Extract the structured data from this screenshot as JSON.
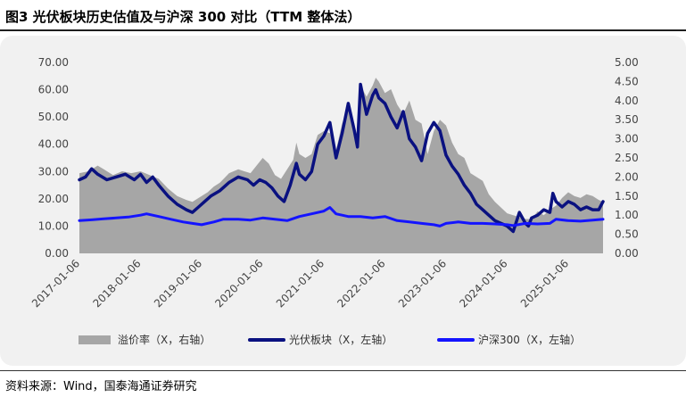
{
  "title": "图3  光伏板块历史估值及与沪深 300 对比（TTM 整体法）",
  "source": "资料来源：Wind，国泰海通证券研究",
  "colors": {
    "premium": "#a6a6a6",
    "pv": "#0a1180",
    "hs300": "#1414ff",
    "axis_text": "#444444",
    "frame": "#f1f1f1"
  },
  "chart_data": {
    "type": "line",
    "left_axis": {
      "min": 0,
      "max": 70,
      "ticks": [
        "0.00",
        "10.00",
        "20.00",
        "30.00",
        "40.00",
        "50.00",
        "60.00",
        "70.00"
      ]
    },
    "right_axis": {
      "min": 0,
      "max": 5,
      "ticks": [
        "0.00",
        "0.50",
        "1.00",
        "1.50",
        "2.00",
        "2.50",
        "3.00",
        "3.50",
        "4.00",
        "4.50",
        "5.00"
      ]
    },
    "x_ticks": [
      "2017-01-06",
      "2018-01-06",
      "2019-01-06",
      "2020-01-06",
      "2021-01-06",
      "2022-01-06",
      "2023-01-06",
      "2024-01-06",
      "2025-01-06"
    ],
    "x_range": [
      2017.0,
      2025.57
    ],
    "series": [
      {
        "name": "溢价率（X，右轴）",
        "axis": "right",
        "style": "area",
        "x": [
          2017.0,
          2017.15,
          2017.3,
          2017.4,
          2017.55,
          2017.7,
          2017.85,
          2018.0,
          2018.15,
          2018.3,
          2018.45,
          2018.6,
          2018.75,
          2018.85,
          2019.0,
          2019.1,
          2019.2,
          2019.3,
          2019.45,
          2019.6,
          2019.7,
          2019.8,
          2019.9,
          2020.0,
          2020.1,
          2020.2,
          2020.3,
          2020.4,
          2020.5,
          2020.55,
          2020.6,
          2020.7,
          2020.8,
          2020.9,
          2021.0,
          2021.1,
          2021.2,
          2021.3,
          2021.4,
          2021.5,
          2021.55,
          2021.6,
          2021.7,
          2021.8,
          2021.85,
          2021.9,
          2022.0,
          2022.1,
          2022.2,
          2022.3,
          2022.4,
          2022.5,
          2022.6,
          2022.7,
          2022.8,
          2022.9,
          2023.0,
          2023.1,
          2023.2,
          2023.3,
          2023.4,
          2023.5,
          2023.6,
          2023.7,
          2023.8,
          2023.9,
          2024.0,
          2024.1,
          2024.2,
          2024.3,
          2024.4,
          2024.5,
          2024.6,
          2024.7,
          2024.8,
          2024.9,
          2025.0,
          2025.1,
          2025.2,
          2025.3,
          2025.4,
          2025.5,
          2025.57
        ],
        "values": [
          2.1,
          2.15,
          2.3,
          2.2,
          2.05,
          2.15,
          2.1,
          2.15,
          2.05,
          1.95,
          1.7,
          1.5,
          1.4,
          1.35,
          1.5,
          1.6,
          1.75,
          1.85,
          2.1,
          2.2,
          2.15,
          2.1,
          2.3,
          2.5,
          2.35,
          2.05,
          1.95,
          2.2,
          2.45,
          2.9,
          2.6,
          2.5,
          2.6,
          3.1,
          3.2,
          3.15,
          2.7,
          3.4,
          3.8,
          3.4,
          3.0,
          4.4,
          4.1,
          4.4,
          4.6,
          4.5,
          4.2,
          4.3,
          3.9,
          3.65,
          4.0,
          3.5,
          3.4,
          2.6,
          3.2,
          3.5,
          3.35,
          2.9,
          2.6,
          2.5,
          2.1,
          2.0,
          1.9,
          1.55,
          1.35,
          1.2,
          1.05,
          1.0,
          0.95,
          0.9,
          0.9,
          1.1,
          1.0,
          1.15,
          1.25,
          1.45,
          1.6,
          1.5,
          1.45,
          1.55,
          1.5,
          1.4,
          1.35
        ]
      },
      {
        "name": "光伏板块（X，左轴）",
        "axis": "left",
        "style": "line",
        "x": [
          2017.0,
          2017.1,
          2017.2,
          2017.3,
          2017.45,
          2017.6,
          2017.75,
          2017.9,
          2018.0,
          2018.1,
          2018.2,
          2018.3,
          2018.45,
          2018.6,
          2018.75,
          2018.85,
          2018.95,
          2019.05,
          2019.15,
          2019.3,
          2019.45,
          2019.6,
          2019.75,
          2019.85,
          2019.95,
          2020.05,
          2020.15,
          2020.25,
          2020.35,
          2020.45,
          2020.55,
          2020.6,
          2020.7,
          2020.8,
          2020.9,
          2021.0,
          2021.1,
          2021.2,
          2021.3,
          2021.4,
          2021.5,
          2021.55,
          2021.6,
          2021.7,
          2021.8,
          2021.85,
          2021.9,
          2022.0,
          2022.1,
          2022.2,
          2022.3,
          2022.4,
          2022.5,
          2022.6,
          2022.7,
          2022.8,
          2022.9,
          2023.0,
          2023.1,
          2023.2,
          2023.3,
          2023.4,
          2023.5,
          2023.6,
          2023.7,
          2023.8,
          2023.9,
          2024.0,
          2024.05,
          2024.1,
          2024.2,
          2024.3,
          2024.35,
          2024.4,
          2024.5,
          2024.6,
          2024.7,
          2024.75,
          2024.8,
          2024.9,
          2025.0,
          2025.1,
          2025.2,
          2025.3,
          2025.4,
          2025.5,
          2025.57
        ],
        "values": [
          27,
          28,
          31,
          29,
          27,
          28,
          29,
          27,
          29,
          26,
          28,
          25,
          21,
          18,
          16,
          15,
          17,
          19,
          21,
          23,
          26,
          28,
          27,
          25,
          27,
          26,
          24,
          21,
          19,
          25,
          33,
          29,
          27,
          30,
          40,
          43,
          48,
          35,
          44,
          55,
          45,
          39,
          62,
          51,
          58,
          60,
          57,
          55,
          50,
          46,
          52,
          42,
          39,
          34,
          44,
          48,
          45,
          36,
          32,
          29,
          25,
          22,
          18,
          16,
          14,
          12,
          11,
          10,
          9,
          8,
          15,
          11,
          10,
          13,
          14,
          16,
          15,
          22,
          19,
          17,
          19,
          18,
          16,
          17,
          16,
          16,
          19
        ]
      },
      {
        "name": "沪深300（X，左轴）",
        "axis": "left",
        "style": "line",
        "x": [
          2017.0,
          2017.2,
          2017.4,
          2017.6,
          2017.8,
          2018.0,
          2018.1,
          2018.3,
          2018.5,
          2018.7,
          2018.85,
          2019.0,
          2019.2,
          2019.35,
          2019.6,
          2019.8,
          2020.0,
          2020.2,
          2020.4,
          2020.6,
          2020.8,
          2021.0,
          2021.1,
          2021.2,
          2021.4,
          2021.6,
          2021.8,
          2022.0,
          2022.2,
          2022.4,
          2022.6,
          2022.8,
          2022.9,
          2023.0,
          2023.2,
          2023.4,
          2023.6,
          2023.8,
          2024.0,
          2024.1,
          2024.3,
          2024.5,
          2024.7,
          2024.8,
          2025.0,
          2025.2,
          2025.4,
          2025.57
        ],
        "values": [
          12.0,
          12.3,
          12.7,
          13.0,
          13.3,
          14.0,
          14.5,
          13.5,
          12.5,
          11.5,
          11.0,
          10.5,
          11.5,
          12.5,
          12.5,
          12.2,
          13.0,
          12.5,
          12.0,
          13.5,
          14.5,
          15.5,
          16.8,
          14.5,
          13.5,
          13.5,
          13.0,
          13.5,
          12.0,
          11.5,
          11.0,
          10.5,
          10.0,
          11.0,
          11.5,
          11.0,
          11.0,
          10.8,
          10.5,
          10.2,
          11.0,
          10.8,
          11.0,
          12.5,
          12.0,
          11.8,
          12.2,
          12.5
        ]
      }
    ]
  }
}
